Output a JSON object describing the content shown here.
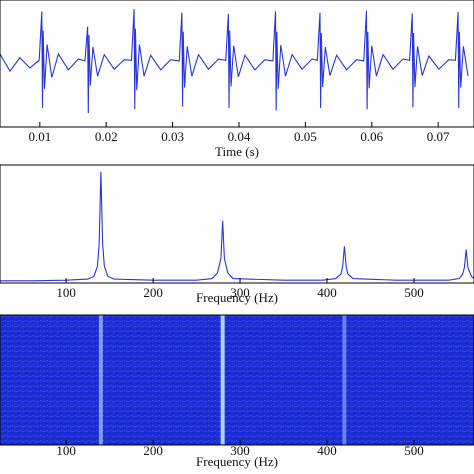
{
  "chart_data": [
    {
      "type": "line",
      "x_label": "Time (s)",
      "color": "#2a35d8",
      "xlim": [
        0.004,
        0.0754
      ],
      "ylim": [
        -1,
        1
      ],
      "xticks": [
        0.01,
        0.02,
        0.03,
        0.04,
        0.05,
        0.06,
        0.07
      ],
      "x": [
        0.004,
        0.0055,
        0.007,
        0.0085,
        0.0099,
        0.0103,
        0.0104,
        0.0105,
        0.0107,
        0.0111,
        0.0118,
        0.0128,
        0.0143,
        0.0158,
        0.0168,
        0.0172,
        0.0173,
        0.0174,
        0.0176,
        0.018,
        0.0187,
        0.0197,
        0.0212,
        0.0227,
        0.0238,
        0.0242,
        0.0243,
        0.0244,
        0.0246,
        0.025,
        0.0257,
        0.0267,
        0.0282,
        0.0297,
        0.031,
        0.0314,
        0.0315,
        0.0316,
        0.0318,
        0.0322,
        0.0329,
        0.0339,
        0.0354,
        0.0369,
        0.038,
        0.0384,
        0.0385,
        0.0386,
        0.0388,
        0.0392,
        0.0399,
        0.0409,
        0.0424,
        0.0439,
        0.0451,
        0.0455,
        0.0456,
        0.0457,
        0.0459,
        0.0463,
        0.047,
        0.048,
        0.0495,
        0.051,
        0.0518,
        0.0522,
        0.0523,
        0.0524,
        0.0526,
        0.053,
        0.0537,
        0.0547,
        0.0562,
        0.0577,
        0.0588,
        0.0592,
        0.0593,
        0.0594,
        0.0596,
        0.06,
        0.0607,
        0.0617,
        0.0632,
        0.0647,
        0.0657,
        0.0661,
        0.0662,
        0.0663,
        0.0665,
        0.0669,
        0.0676,
        0.0686,
        0.0701,
        0.0716,
        0.0726,
        0.073,
        0.0731,
        0.0732,
        0.0734,
        0.0738,
        0.0745
      ],
      "values": [
        0.15,
        -0.12,
        0.09,
        -0.07,
        0.05,
        0.82,
        -0.7,
        0.52,
        -0.4,
        0.3,
        -0.22,
        0.15,
        -0.1,
        0.07,
        0.04,
        0.58,
        -0.78,
        0.45,
        -0.35,
        0.26,
        -0.2,
        0.14,
        -0.09,
        0.06,
        0.05,
        0.86,
        -0.72,
        0.55,
        -0.42,
        0.3,
        -0.2,
        0.13,
        -0.1,
        0.06,
        0.04,
        0.8,
        -0.68,
        0.5,
        -0.38,
        0.27,
        -0.2,
        0.14,
        -0.09,
        0.07,
        0.05,
        0.78,
        -0.7,
        0.52,
        -0.36,
        0.28,
        -0.21,
        0.13,
        -0.1,
        0.06,
        0.04,
        0.82,
        -0.74,
        0.5,
        -0.4,
        0.29,
        -0.2,
        0.14,
        -0.09,
        0.07,
        0.05,
        0.8,
        -0.7,
        0.48,
        -0.37,
        0.26,
        -0.19,
        0.13,
        -0.1,
        0.06,
        0.04,
        0.83,
        -0.72,
        0.5,
        -0.39,
        0.28,
        -0.2,
        0.14,
        -0.09,
        0.07,
        0.05,
        0.79,
        -0.69,
        0.48,
        -0.37,
        0.27,
        -0.19,
        0.12,
        -0.09,
        0.06,
        0.05,
        0.81,
        -0.7,
        0.5,
        -0.38,
        0.27,
        -0.2
      ]
    },
    {
      "type": "line",
      "x_label": "Frequency (Hz)",
      "color": "#2a35d8",
      "xlim": [
        24,
        569
      ],
      "ylim": [
        0,
        1.06
      ],
      "xticks": [
        100,
        200,
        300,
        400,
        500
      ],
      "x": [
        24,
        60,
        100,
        125,
        132,
        136,
        138,
        140,
        142,
        144,
        148,
        155,
        200,
        250,
        268,
        274,
        278,
        280,
        282,
        286,
        292,
        350,
        395,
        410,
        416,
        418,
        420,
        422,
        424,
        430,
        480,
        540,
        552,
        556,
        558,
        560,
        562,
        566,
        569
      ],
      "values": [
        0.02,
        0.02,
        0.025,
        0.035,
        0.06,
        0.15,
        0.35,
        1.0,
        0.35,
        0.15,
        0.06,
        0.035,
        0.025,
        0.025,
        0.04,
        0.09,
        0.22,
        0.56,
        0.22,
        0.09,
        0.04,
        0.025,
        0.025,
        0.04,
        0.08,
        0.15,
        0.33,
        0.15,
        0.08,
        0.04,
        0.025,
        0.025,
        0.04,
        0.08,
        0.14,
        0.3,
        0.14,
        0.06,
        0.04
      ]
    },
    {
      "type": "heatmap",
      "x_label": "Frequency (Hz)",
      "color": "#1c2ed4",
      "xlim": [
        24,
        569
      ],
      "xticks": [
        100,
        200,
        300,
        400,
        500
      ],
      "x": [
        140,
        280,
        420
      ],
      "values": [
        0.6,
        0.9,
        0.45
      ]
    }
  ]
}
